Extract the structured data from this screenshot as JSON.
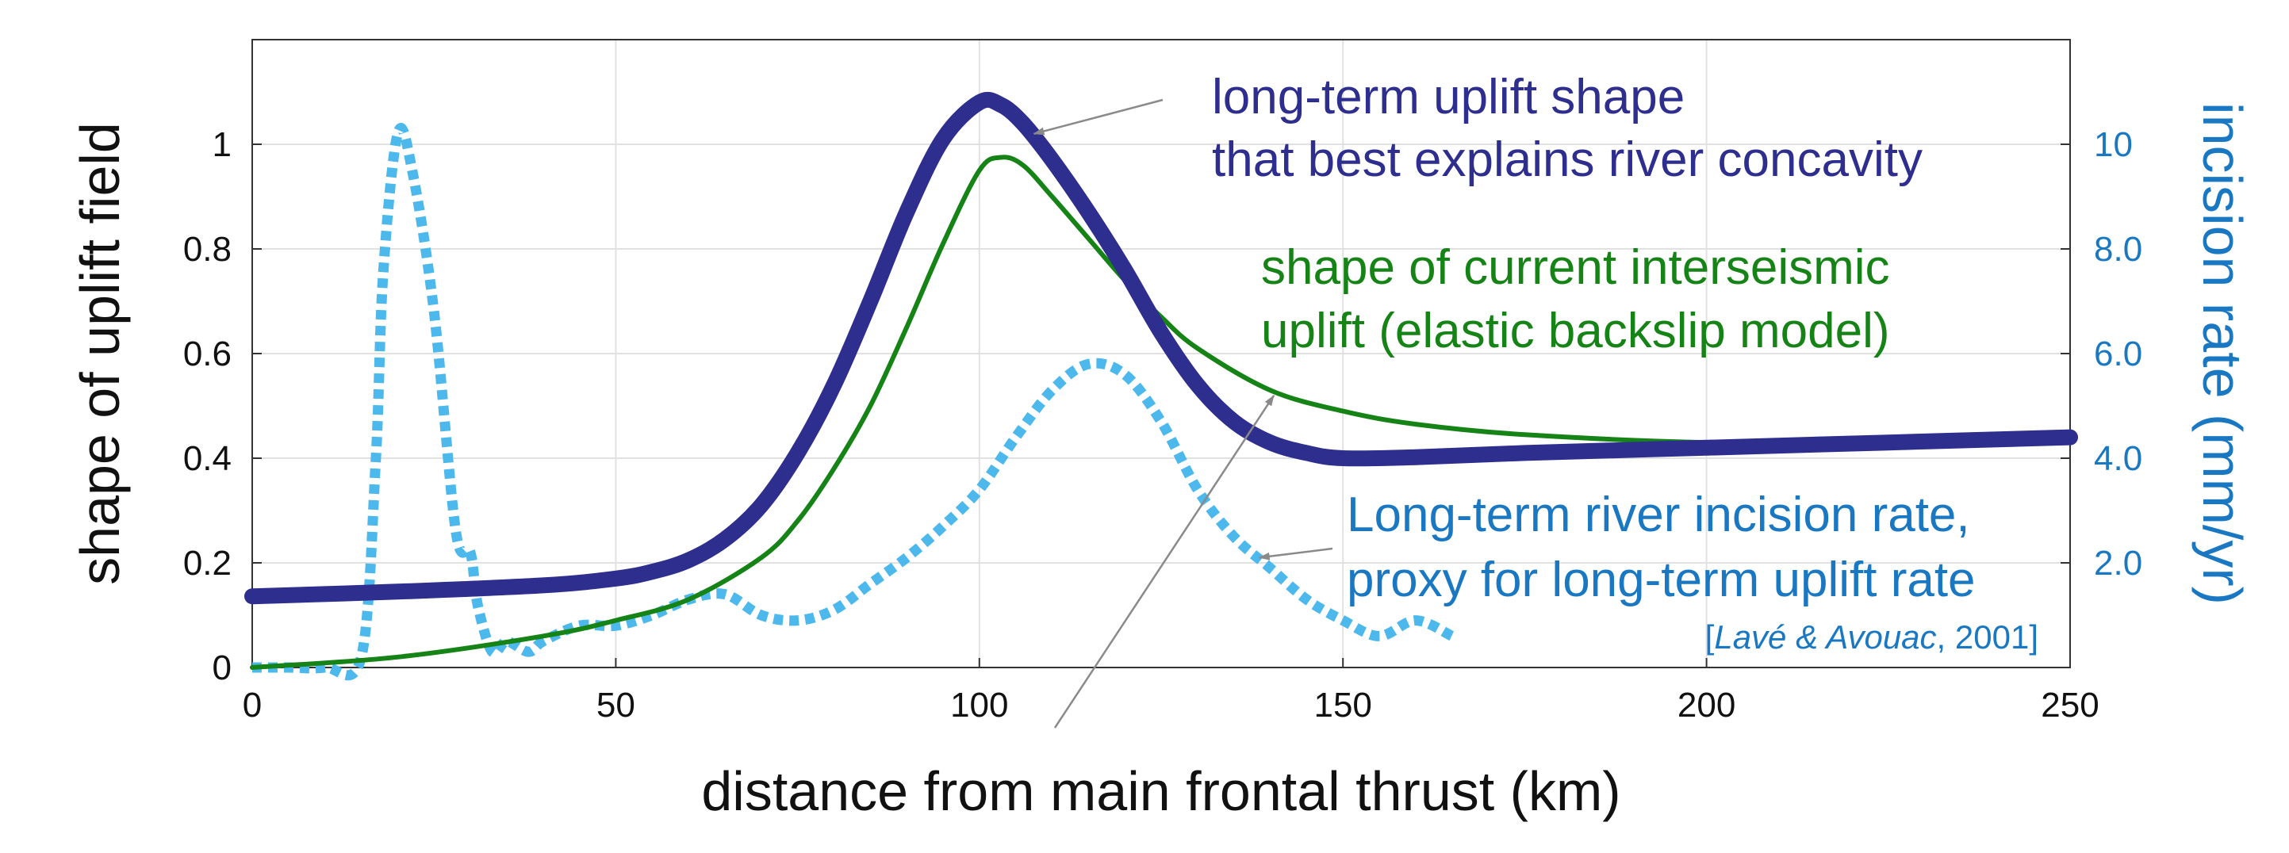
{
  "chart_data": {
    "type": "line",
    "xlabel": "distance from main frontal thrust (km)",
    "ylabel": "shape of uplift field",
    "y2label": "incision rate (mm/yr)",
    "xlim": [
      0,
      250
    ],
    "ylim": [
      0,
      1.2
    ],
    "y2lim": [
      0,
      12
    ],
    "grid": true,
    "x_ticks": [
      "0",
      "50",
      "100",
      "150",
      "200",
      "250"
    ],
    "y_ticks": [
      "0",
      "0.2",
      "0.4",
      "0.6",
      "0.8",
      "1"
    ],
    "y2_ticks": [
      "2.0",
      "4.0",
      "6.0",
      "8.0",
      "10"
    ],
    "series": [
      {
        "id": "uplift_longterm",
        "color": "#2e2e8f",
        "style": "solid-thick",
        "axis": "left",
        "x": [
          0,
          20,
          40,
          50,
          55,
          60,
          65,
          70,
          75,
          80,
          85,
          90,
          95,
          100,
          103,
          106,
          110,
          115,
          120,
          125,
          130,
          135,
          140,
          145,
          150,
          160,
          175,
          200,
          225,
          250
        ],
        "y": [
          0.136,
          0.145,
          0.157,
          0.17,
          0.183,
          0.205,
          0.245,
          0.31,
          0.41,
          0.54,
          0.7,
          0.87,
          1.01,
          1.08,
          1.075,
          1.04,
          0.97,
          0.87,
          0.76,
          0.64,
          0.54,
          0.47,
          0.43,
          0.41,
          0.4,
          0.402,
          0.41,
          0.42,
          0.43,
          0.44
        ]
      },
      {
        "id": "uplift_interseismic",
        "color": "#168316",
        "style": "solid",
        "axis": "left",
        "x": [
          0,
          20,
          40,
          50,
          60,
          70,
          75,
          80,
          85,
          90,
          95,
          100,
          103,
          106,
          110,
          115,
          120,
          125,
          130,
          140,
          150,
          160,
          175,
          200,
          227
        ],
        "y": [
          0.0,
          0.02,
          0.06,
          0.09,
          0.13,
          0.21,
          0.28,
          0.38,
          0.5,
          0.65,
          0.81,
          0.95,
          0.975,
          0.96,
          0.9,
          0.82,
          0.74,
          0.67,
          0.61,
          0.53,
          0.49,
          0.465,
          0.445,
          0.43,
          0.43
        ]
      },
      {
        "id": "incision_rate",
        "color": "#4db8ec",
        "style": "dotted",
        "axis": "right",
        "x": [
          0,
          5,
          10,
          15,
          17,
          18,
          20,
          22,
          25,
          28,
          30,
          31,
          33,
          35,
          38,
          40,
          45,
          50,
          55,
          60,
          65,
          70,
          75,
          80,
          85,
          90,
          95,
          100,
          105,
          110,
          115,
          120,
          125,
          130,
          135,
          140,
          145,
          150,
          155,
          160,
          165
        ],
        "y": [
          0.0,
          0.0,
          0.0,
          0.2,
          4.0,
          7.5,
          10.2,
          9.5,
          6.8,
          2.6,
          2.2,
          1.2,
          0.3,
          0.5,
          0.3,
          0.5,
          0.8,
          0.8,
          1.0,
          1.3,
          1.4,
          1.0,
          0.9,
          1.1,
          1.6,
          2.1,
          2.7,
          3.4,
          4.4,
          5.3,
          5.8,
          5.6,
          4.7,
          3.4,
          2.5,
          1.9,
          1.3,
          0.9,
          0.6,
          0.9,
          0.6
        ]
      }
    ],
    "annotations": [
      {
        "lines": [
          "long-term uplift shape",
          "that best explains river concavity"
        ],
        "color": "#2e2e8f"
      },
      {
        "lines": [
          "shape of current interseismic",
          "uplift (elastic backslip model)"
        ],
        "color": "#168316"
      },
      {
        "lines": [
          "Long-term river incision rate,",
          "proxy for long-term uplift rate"
        ],
        "color": "#1a78c2"
      }
    ],
    "citation": {
      "open": "[",
      "authors": "Lavé & Avouac",
      "year": ", 2001]"
    }
  }
}
